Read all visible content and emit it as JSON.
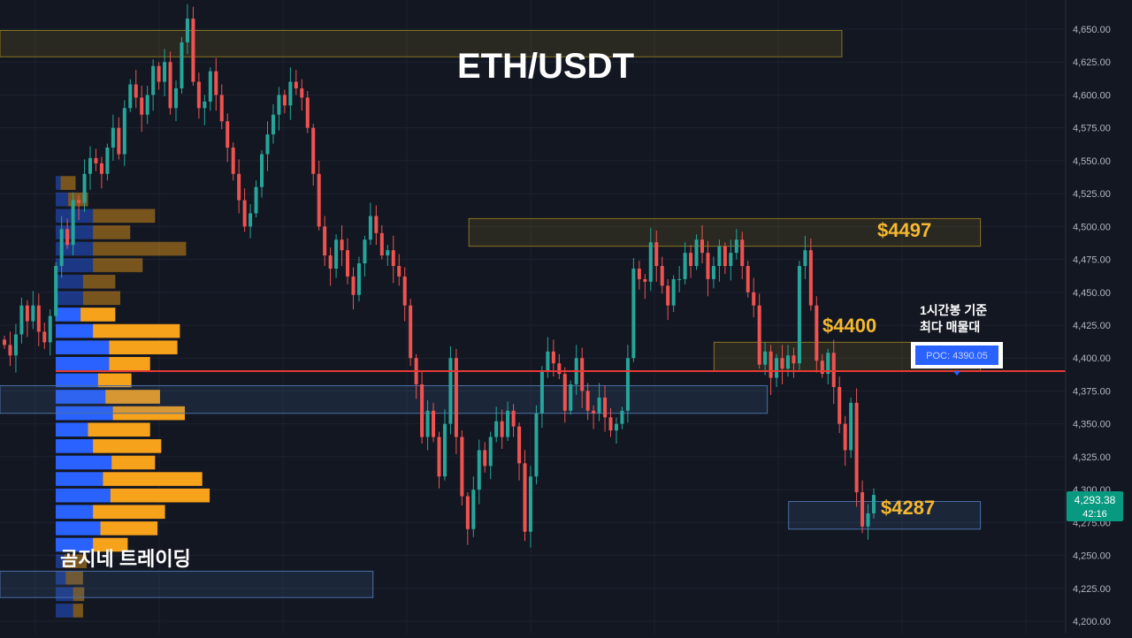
{
  "title": "ETH/USDT",
  "watermark": "곰지네 트레이딩",
  "colors": {
    "background": "#131722",
    "up": "#26a69a",
    "down": "#ef5350",
    "vp_buy": "#2962ff",
    "vp_sell": "#f7a21b",
    "zone_yellow": "#f0c419",
    "zone_blue": "#4a6fa5",
    "poc_line": "#e53935",
    "annotation": "#f5b82e",
    "price_tag": "#089981"
  },
  "annotations": {
    "level_4497": "$4497",
    "level_4400": "$4400",
    "level_4287": "$4287",
    "poc_note_line1": "1시간봉 기준",
    "poc_note_line2": "최다 매물대",
    "poc_label": "POC: 4390.05"
  },
  "price_tag": {
    "price": "4,293.38",
    "countdown": "42:16"
  },
  "chart_data": {
    "type": "candlestick",
    "title": "ETH/USDT",
    "y_axis": {
      "side": "right",
      "ylim": [
        4195,
        4675
      ],
      "ticks": [
        4200,
        4225,
        4250,
        4275,
        4300,
        4325,
        4350,
        4375,
        4400,
        4425,
        4450,
        4475,
        4500,
        4525,
        4550,
        4575,
        4600,
        4625,
        4650
      ],
      "tick_labels": [
        "4,200.00",
        "4,225.00",
        "4,250.00",
        "4,275.00",
        "4,300.00",
        "4,325.00",
        "4,350.00",
        "4,375.00",
        "4,400.00",
        "4,425.00",
        "4,450.00",
        "4,475.00",
        "4,500.00",
        "4,525.00",
        "4,550.00",
        "4,575.00",
        "4,600.00",
        "4,625.00",
        "4,650.00"
      ]
    },
    "grid": true,
    "poc_price": 4390.05,
    "volume_profile": {
      "bin_size": 12.5,
      "buy": [
        0.14,
        0.14,
        0.08,
        0.07,
        0.3,
        0.36,
        0.3,
        0.44,
        0.38,
        0.45,
        0.3,
        0.26,
        0.46,
        0.4,
        0.34,
        0.43,
        0.43,
        0.3,
        0.2,
        0.22,
        0.22,
        0.3,
        0.3,
        0.3,
        0.3,
        0.1,
        0.04
      ],
      "sell": [
        0.08,
        0.09,
        0.14,
        0.18,
        0.28,
        0.46,
        0.58,
        0.8,
        0.8,
        0.35,
        0.55,
        0.5,
        0.58,
        0.44,
        0.27,
        0.33,
        0.55,
        0.7,
        0.28,
        0.3,
        0.26,
        0.4,
        0.75,
        0.3,
        0.5,
        0.16,
        0.12
      ],
      "price_start": 4201.5
    },
    "zones": [
      {
        "type": "supply",
        "from": 4629,
        "to": 4649,
        "x0": 0.0,
        "x1": 0.79
      },
      {
        "type": "supply",
        "from": 4485,
        "to": 4506,
        "x0": 0.44,
        "x1": 0.92
      },
      {
        "type": "supply",
        "from": 4390,
        "to": 4412,
        "x0": 0.67,
        "x1": 0.92
      },
      {
        "type": "range",
        "from": 4358,
        "to": 4379,
        "x0": 0.0,
        "x1": 0.72
      },
      {
        "type": "demand",
        "from": 4270,
        "to": 4291,
        "x0": 0.74,
        "x1": 0.92
      },
      {
        "type": "range",
        "from": 4218,
        "to": 4238,
        "x0": 0.0,
        "x1": 0.35
      }
    ],
    "series": [
      {
        "values": [
          4410,
          4402,
          4418,
          4440,
          4428,
          4440,
          4420,
          4412,
          4432,
          4470,
          4498,
          4486,
          4520,
          4518,
          4540,
          4552,
          4548,
          4540,
          4560,
          4575,
          4555,
          4590,
          4608,
          4598,
          4585,
          4600,
          4622,
          4610,
          4625,
          4590,
          4605,
          4640,
          4658,
          4610,
          4590,
          4595,
          4618,
          4600,
          4580,
          4560,
          4540,
          4520,
          4500,
          4510,
          4530,
          4555,
          4570,
          4585,
          4600,
          4592,
          4610,
          4605,
          4598,
          4575,
          4540,
          4500,
          4478,
          4468,
          4490,
          4482,
          4462,
          4448,
          4472,
          4490,
          4508,
          4495,
          4478,
          4482,
          4470,
          4462,
          4440,
          4400,
          4380,
          4340,
          4360,
          4340,
          4310,
          4350,
          4400,
          4340,
          4295,
          4270,
          4300,
          4330,
          4318,
          4340,
          4352,
          4340,
          4360,
          4348,
          4320,
          4268,
          4310,
          4358,
          4390,
          4405,
          4396,
          4388,
          4360,
          4380,
          4400,
          4375,
          4360,
          4358,
          4370,
          4355,
          4345,
          4350,
          4360,
          4400,
          4468,
          4460,
          4458,
          4488,
          4470,
          4455,
          4440,
          4460,
          4460,
          4480,
          4470,
          4490,
          4480,
          4460,
          4470,
          4485,
          4470,
          4480,
          4490,
          4470,
          4450,
          4440,
          4395,
          4405,
          4385,
          4400,
          4392,
          4402,
          4396,
          4470,
          4482,
          4440,
          4398,
          4388,
          4404,
          4378,
          4350,
          4330,
          4366,
          4298,
          4272,
          4282,
          4296
        ]
      }
    ]
  }
}
